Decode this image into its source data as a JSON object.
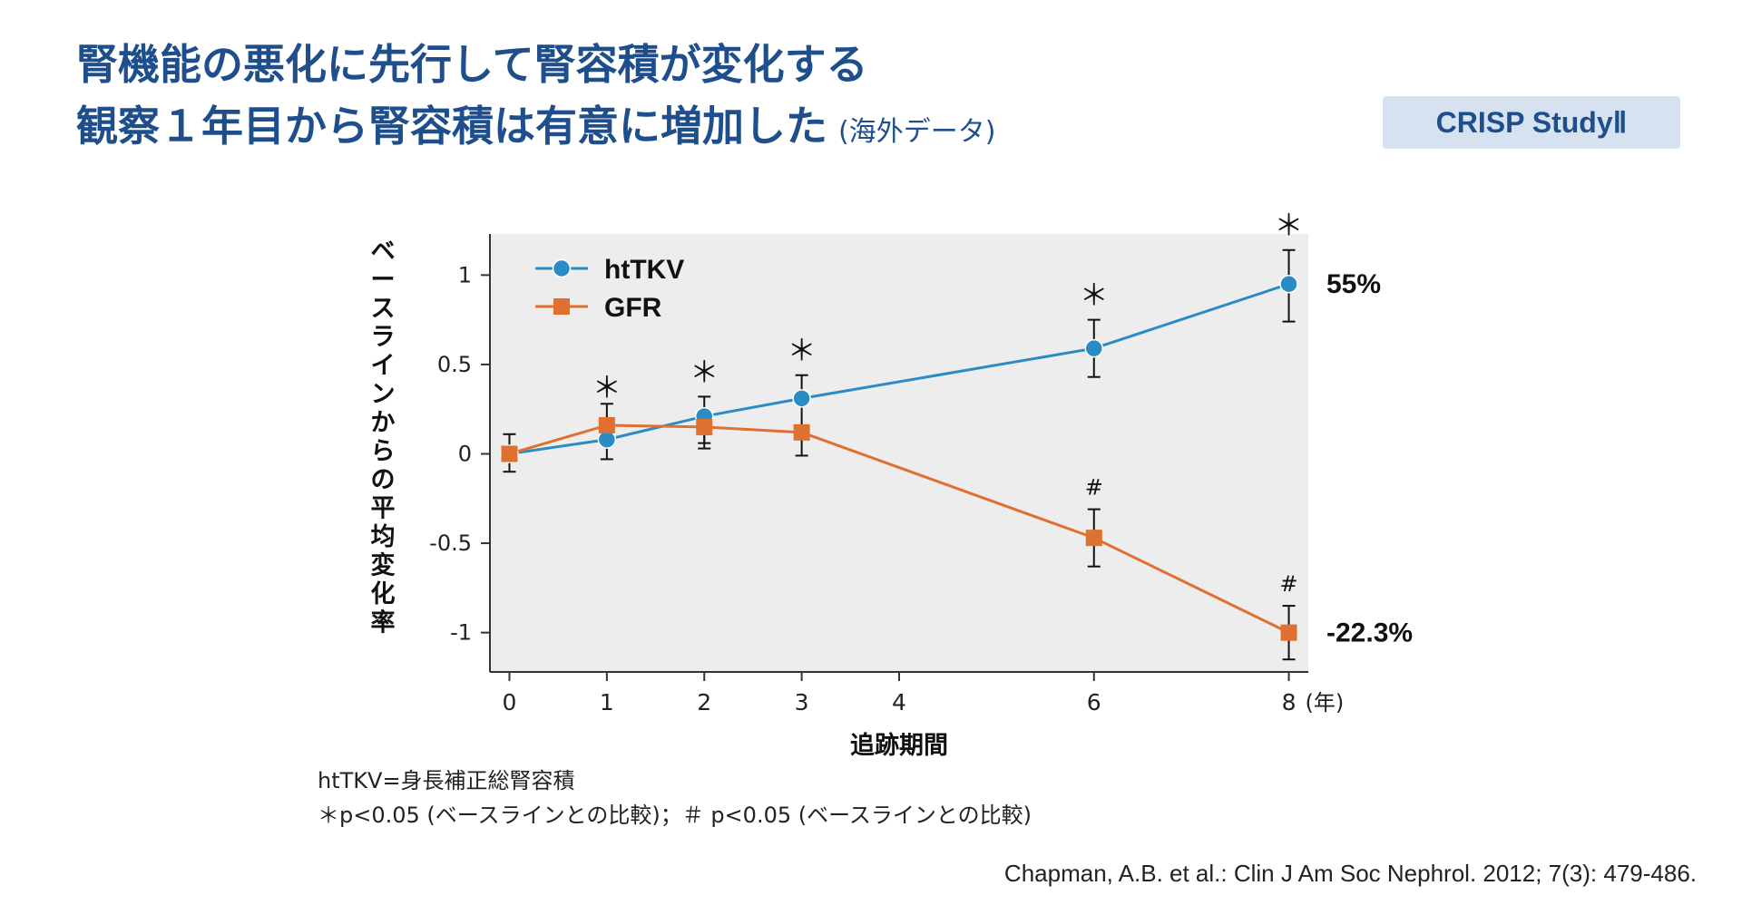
{
  "title": {
    "line1": "腎機能の悪化に先行して腎容積が変化する",
    "line2": "観察１年目から腎容積は有意に増加した",
    "note": "(海外データ)"
  },
  "badge": "CRISP StudyⅡ",
  "chart_data": {
    "type": "line",
    "ylabel": "ベースラインからの平均変化率",
    "xlabel": "追跡期間",
    "x_unit": "(年)",
    "xticks": [
      0,
      1,
      2,
      3,
      4,
      6,
      8
    ],
    "yticks": [
      {
        "value": 1,
        "label": "1"
      },
      {
        "value": 0.5,
        "label": "0.5"
      },
      {
        "value": 0,
        "label": "0"
      },
      {
        "value": -0.5,
        "label": "-0.5"
      },
      {
        "value": -1,
        "label": "-1"
      }
    ],
    "xlim": [
      -0.2,
      8.2
    ],
    "ylim": [
      -1.22,
      1.23
    ],
    "legend_position": "top-left",
    "series": [
      {
        "name": "htTKV",
        "color": "#2b8bc5",
        "marker": "circle",
        "x": [
          0,
          1,
          2,
          3,
          6,
          8
        ],
        "y": [
          0,
          0.08,
          0.21,
          0.31,
          0.59,
          0.95
        ],
        "err_low": [
          0,
          0.11,
          0.15,
          0.18,
          0.16,
          0.21
        ],
        "err_high": [
          0,
          0,
          0.11,
          0.13,
          0.16,
          0.19
        ],
        "annotations": [
          "",
          "＊",
          "＊",
          "＊",
          "＊",
          "＊"
        ],
        "end_label": "55%"
      },
      {
        "name": "GFR",
        "color": "#e07030",
        "marker": "square",
        "x": [
          0,
          1,
          2,
          3,
          6,
          8
        ],
        "y": [
          0,
          0.16,
          0.15,
          0.12,
          -0.47,
          -1.0
        ],
        "err_low": [
          0.1,
          0,
          0.12,
          0.13,
          0.16,
          0.15
        ],
        "err_high": [
          0.11,
          0.12,
          0,
          0,
          0.16,
          0.15
        ],
        "annotations": [
          "",
          "",
          "",
          "",
          "#",
          "#"
        ],
        "end_label": "-22.3%"
      }
    ]
  },
  "footnotes": {
    "line1": "htTKV=身長補正総腎容積",
    "line2": "＊p<0.05 (ベースラインとの比較)；＃ p<0.05 (ベースラインとの比較)"
  },
  "citation": "Chapman, A.B. et al.: Clin J Am Soc Nephrol. 2012; 7(3): 479-486."
}
